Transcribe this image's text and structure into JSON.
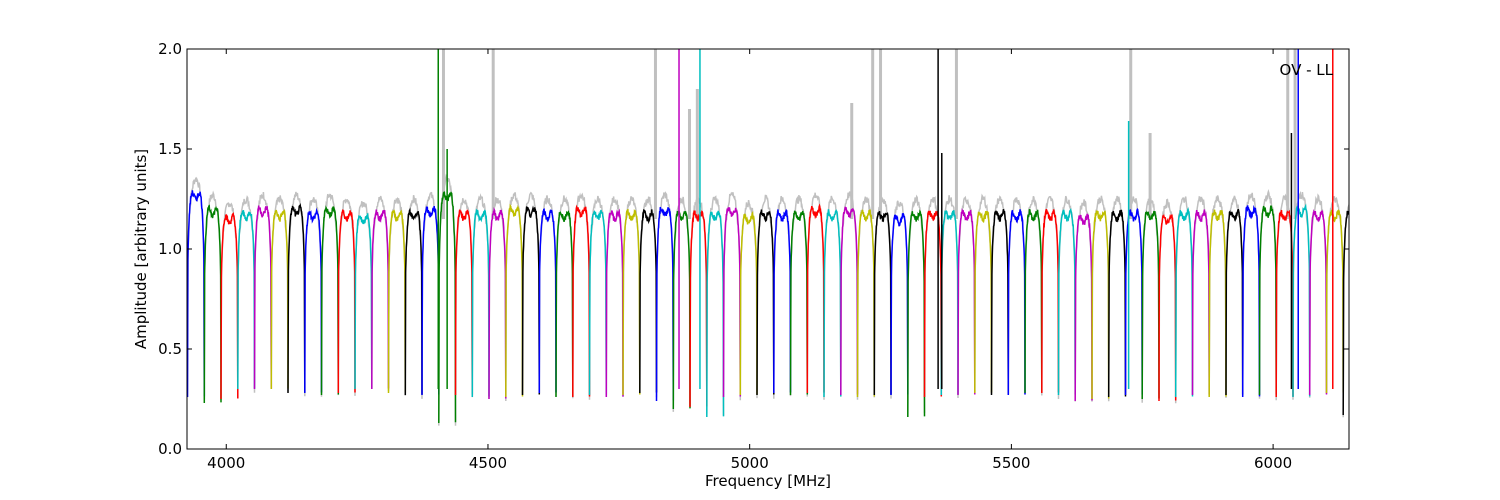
{
  "chart_data": {
    "type": "line",
    "title": "",
    "xlabel": "Frequency [MHz]",
    "ylabel": "Amplitude [arbitrary units]",
    "xlim": [
      3925,
      6145
    ],
    "ylim": [
      0.0,
      2.0
    ],
    "xticks": [
      4000,
      4500,
      5000,
      5500,
      6000
    ],
    "yticks": [
      0.0,
      0.5,
      1.0,
      1.5,
      2.0
    ],
    "xtick_labels": [
      "4000",
      "4500",
      "5000",
      "5500",
      "6000"
    ],
    "ytick_labels": [
      "0.0",
      "0.5",
      "1.0",
      "1.5",
      "2.0"
    ],
    "annotation": "OV - LL",
    "grid": false,
    "channel_width_mhz": 32,
    "channel_start_mhz": 3926,
    "channel_colors": [
      "#0000ff",
      "#008000",
      "#ff0000",
      "#00bfbf",
      "#bf00bf",
      "#bfbf00",
      "#000000"
    ],
    "unflagged_color": "#c0c0c0",
    "channel_levels": [
      1.3,
      1.22,
      1.18,
      1.2,
      1.22,
      1.2,
      1.22,
      1.2,
      1.22,
      1.2,
      1.18,
      1.2,
      1.2,
      1.2,
      1.22,
      1.3,
      1.2,
      1.2,
      1.2,
      1.22,
      1.22,
      1.2,
      1.2,
      1.22,
      1.2,
      1.2,
      1.2,
      1.2,
      1.22,
      1.2,
      1.2,
      1.2,
      1.22,
      1.18,
      1.2,
      1.2,
      1.2,
      1.22,
      1.2,
      1.22,
      1.2,
      1.2,
      1.18,
      1.2,
      1.2,
      1.2,
      1.2,
      1.2,
      1.2,
      1.2,
      1.2,
      1.2,
      1.2,
      1.18,
      1.2,
      1.2,
      1.2,
      1.2,
      1.18,
      1.2,
      1.2,
      1.2,
      1.2,
      1.22,
      1.22,
      1.2,
      1.22,
      1.2,
      1.2,
      1.2
    ],
    "channel_minima": [
      0.26,
      0.23,
      0.25,
      0.3,
      0.3,
      0.3,
      0.28,
      0.28,
      0.27,
      0.28,
      0.3,
      0.3,
      0.28,
      0.27,
      0.27,
      0.13,
      0.27,
      0.26,
      0.25,
      0.26,
      0.27,
      0.28,
      0.26,
      0.26,
      0.27,
      0.26,
      0.27,
      0.28,
      0.24,
      0.2,
      0.21,
      0.16,
      0.26,
      0.27,
      0.27,
      0.28,
      0.27,
      0.28,
      0.26,
      0.27,
      0.26,
      0.27,
      0.27,
      0.16,
      0.26,
      0.27,
      0.27,
      0.28,
      0.27,
      0.27,
      0.28,
      0.28,
      0.27,
      0.24,
      0.25,
      0.26,
      0.27,
      0.25,
      0.24,
      0.26,
      0.27,
      0.26,
      0.27,
      0.26,
      0.27,
      0.26,
      0.26,
      0.27,
      0.28,
      0.17
    ],
    "spikes": [
      {
        "x": 4405,
        "y": 2.0,
        "color": "#008000"
      },
      {
        "x": 4422,
        "y": 1.5,
        "color": "#008000"
      },
      {
        "x": 4865,
        "y": 2.0,
        "color": "#bf00bf"
      },
      {
        "x": 4905,
        "y": 2.0,
        "color": "#00bfbf"
      },
      {
        "x": 5360,
        "y": 2.0,
        "color": "#000000"
      },
      {
        "x": 5367,
        "y": 1.48,
        "color": "#000000"
      },
      {
        "x": 5724,
        "y": 1.64,
        "color": "#00bfbf"
      },
      {
        "x": 6035,
        "y": 1.58,
        "color": "#000000"
      },
      {
        "x": 6048,
        "y": 2.0,
        "color": "#0000ff"
      },
      {
        "x": 6114,
        "y": 2.0,
        "color": "#ff0000"
      }
    ],
    "gray_spikes": [
      {
        "x": 4415,
        "y": 2.0
      },
      {
        "x": 4510,
        "y": 2.0
      },
      {
        "x": 4820,
        "y": 2.0
      },
      {
        "x": 4885,
        "y": 1.7
      },
      {
        "x": 4900,
        "y": 1.8
      },
      {
        "x": 5195,
        "y": 1.73
      },
      {
        "x": 5235,
        "y": 2.0
      },
      {
        "x": 5250,
        "y": 2.0
      },
      {
        "x": 5395,
        "y": 2.0
      },
      {
        "x": 5728,
        "y": 2.0
      },
      {
        "x": 5765,
        "y": 1.58
      },
      {
        "x": 6028,
        "y": 2.0
      },
      {
        "x": 6042,
        "y": 2.0
      }
    ]
  }
}
